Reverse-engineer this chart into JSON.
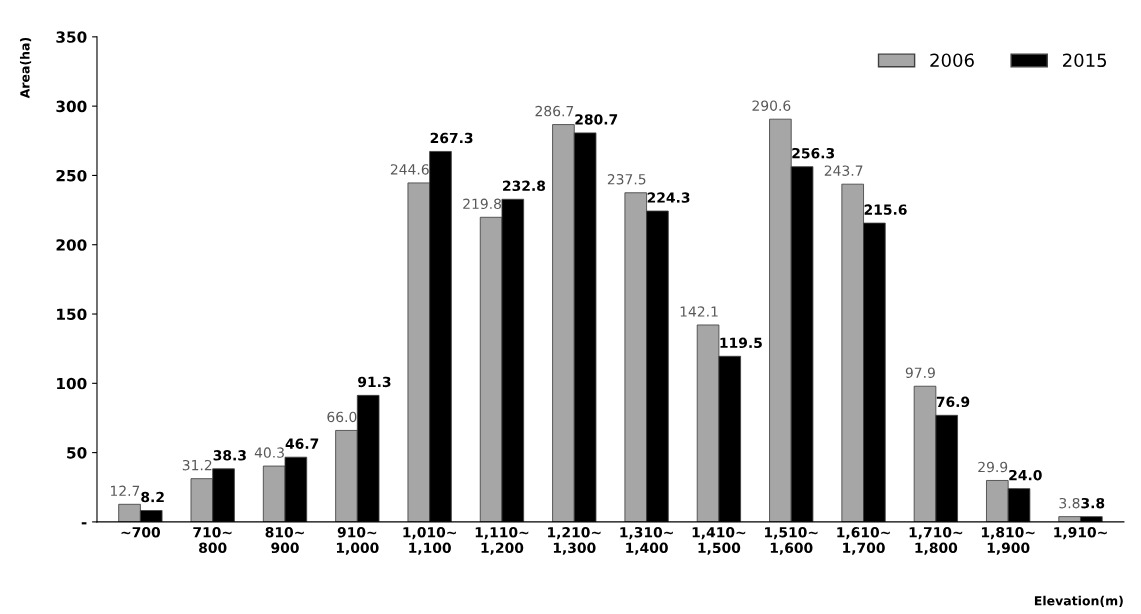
{
  "chart_data": {
    "type": "bar",
    "xlabel": "Elevation(m)",
    "ylabel": "Area(ha)",
    "categories": [
      "~700",
      "710~\n800",
      "810~\n900",
      "910~\n1,000",
      "1,010~\n1,100",
      "1,110~\n1,200",
      "1,210~\n1,300",
      "1,310~\n1,400",
      "1,410~\n1,500",
      "1,510~\n1,600",
      "1,610~\n1,700",
      "1,710~\n1,800",
      "1,810~\n1,900",
      "1,910~"
    ],
    "series": [
      {
        "name": "2006",
        "color": "#a6a6a6",
        "values": [
          12.7,
          31.2,
          40.3,
          66.0,
          244.6,
          219.8,
          286.7,
          237.5,
          142.1,
          290.6,
          243.7,
          97.9,
          29.9,
          3.8
        ],
        "value_labels": [
          "12.7",
          "31.2",
          "40.3",
          "66.0",
          "244.6",
          "219.8",
          "286.7",
          "237.5",
          "142.1",
          "290.6",
          "243.7",
          "97.9",
          "29.9",
          "3.8"
        ]
      },
      {
        "name": "2015",
        "color": "#000000",
        "values": [
          8.2,
          38.3,
          46.7,
          91.3,
          267.3,
          232.8,
          280.7,
          224.3,
          119.5,
          256.3,
          215.6,
          76.9,
          24.0,
          3.8
        ],
        "value_labels": [
          "8.2",
          "38.3",
          "46.7",
          "91.3",
          "267.3",
          "232.8",
          "280.7",
          "224.3",
          "119.5",
          "256.3",
          "215.6",
          "76.9",
          "24.0",
          "3.8"
        ]
      }
    ],
    "ylim": [
      0,
      350
    ],
    "yticks": [
      {
        "value": 0,
        "label": "-"
      },
      50,
      100,
      150,
      200,
      250,
      300,
      350
    ],
    "legend": "top right",
    "grid": false
  }
}
